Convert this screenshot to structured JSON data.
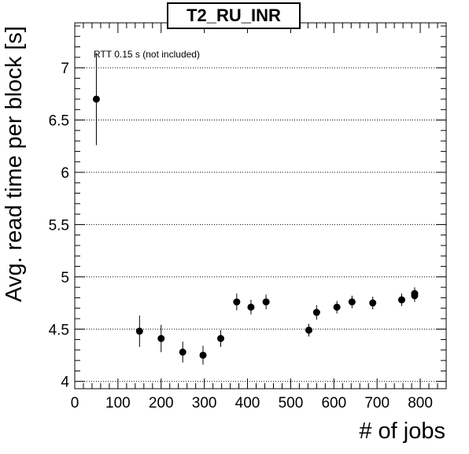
{
  "chart_data": {
    "type": "scatter",
    "title": "T2_RU_INR",
    "xlabel": "# of jobs",
    "ylabel": "Avg. read time per block [s]",
    "annotation": "RTT 0.15 s (not included)",
    "xlim": [
      0,
      860
    ],
    "ylim": [
      3.93,
      7.43
    ],
    "x_ticks": [
      0,
      100,
      200,
      300,
      400,
      500,
      600,
      700,
      800
    ],
    "x_tick_labels": [
      "0",
      "100",
      "200",
      "300",
      "400",
      "500",
      "600",
      "700",
      "800"
    ],
    "y_ticks": [
      4,
      4.5,
      5,
      5.5,
      6,
      6.5,
      7
    ],
    "y_tick_labels": [
      "4",
      "4.5",
      "5",
      "5.5",
      "6",
      "6.5",
      "7"
    ],
    "grid": "y-major-dotted",
    "points": [
      {
        "x": 50,
        "y": 6.7,
        "err": 0.44
      },
      {
        "x": 150,
        "y": 4.48,
        "err": 0.15
      },
      {
        "x": 200,
        "y": 4.41,
        "err": 0.13
      },
      {
        "x": 250,
        "y": 4.28,
        "err": 0.1
      },
      {
        "x": 297,
        "y": 4.25,
        "err": 0.09
      },
      {
        "x": 338,
        "y": 4.41,
        "err": 0.08
      },
      {
        "x": 375,
        "y": 4.76,
        "err": 0.08
      },
      {
        "x": 408,
        "y": 4.71,
        "err": 0.07
      },
      {
        "x": 443,
        "y": 4.76,
        "err": 0.07
      },
      {
        "x": 542,
        "y": 4.49,
        "err": 0.06
      },
      {
        "x": 560,
        "y": 4.66,
        "err": 0.07
      },
      {
        "x": 607,
        "y": 4.71,
        "err": 0.06
      },
      {
        "x": 642,
        "y": 4.76,
        "err": 0.06
      },
      {
        "x": 690,
        "y": 4.75,
        "err": 0.06
      },
      {
        "x": 757,
        "y": 4.78,
        "err": 0.06
      },
      {
        "x": 787,
        "y": 4.82,
        "err": 0.06
      },
      {
        "x": 787,
        "y": 4.84,
        "err": 0.06
      }
    ],
    "colors": {
      "marker": "#000000",
      "axis": "#000000",
      "grid": "#000000"
    }
  }
}
